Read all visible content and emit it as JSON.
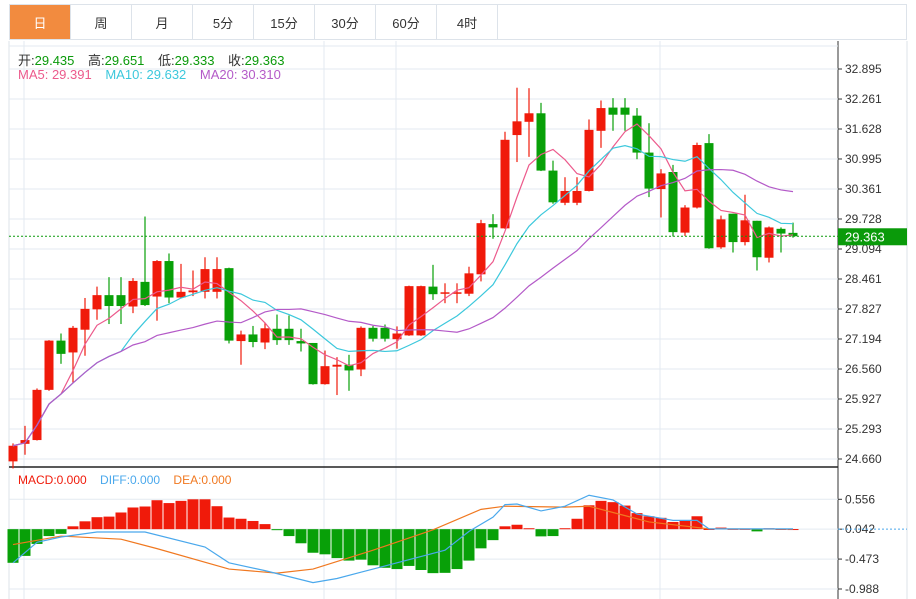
{
  "tabs": [
    "日",
    "周",
    "月",
    "5分",
    "15分",
    "30分",
    "60分",
    "4时"
  ],
  "active_tab": 0,
  "ohlc": {
    "open_label": "开:",
    "open": "29.435",
    "high_label": "高:",
    "high": "29.651",
    "low_label": "低:",
    "low": "29.333",
    "close_label": "收:",
    "close": "29.363"
  },
  "ma": {
    "ma5": "MA5: 29.391",
    "ma10": "MA10: 29.632",
    "ma20": "MA20: 30.310"
  },
  "macd_legend": {
    "macd": "MACD:0.000",
    "diff": "DIFF:0.000",
    "dea": "DEA:0.000"
  },
  "current_price": "29.363",
  "colors": {
    "up": "#f01a0a",
    "down": "#08a008",
    "ma5": "#ec5a8c",
    "ma10": "#3cc8dc",
    "ma20": "#b45ac8",
    "diff": "#4aa8ec",
    "dea": "#f07820",
    "accent": "#f28b3f"
  },
  "chart_data": {
    "type": "candlestick",
    "price_ticks": [
      "32.895",
      "32.261",
      "31.628",
      "30.995",
      "30.361",
      "29.728",
      "29.094",
      "28.461",
      "27.827",
      "27.194",
      "26.560",
      "25.927",
      "25.293",
      "24.660"
    ],
    "ylim": [
      24.66,
      32.895
    ],
    "candles": [
      [
        24.61,
        24.99,
        24.46,
        24.94
      ],
      [
        24.98,
        25.36,
        24.75,
        25.06
      ],
      [
        25.06,
        26.15,
        25.05,
        26.12
      ],
      [
        26.12,
        27.17,
        26.1,
        27.16
      ],
      [
        27.16,
        27.31,
        26.67,
        26.88
      ],
      [
        26.91,
        27.47,
        26.26,
        27.43
      ],
      [
        27.39,
        28.06,
        26.84,
        27.83
      ],
      [
        27.82,
        28.3,
        27.6,
        28.12
      ],
      [
        28.12,
        28.5,
        27.51,
        27.89
      ],
      [
        28.12,
        28.5,
        27.51,
        27.89
      ],
      [
        27.88,
        28.48,
        27.74,
        28.42
      ],
      [
        28.4,
        29.78,
        27.89,
        27.91
      ],
      [
        28.09,
        28.86,
        27.58,
        28.84
      ],
      [
        28.84,
        29.0,
        27.95,
        28.07
      ],
      [
        28.07,
        28.78,
        28.05,
        28.19
      ],
      [
        28.18,
        28.64,
        28.1,
        28.22
      ],
      [
        28.19,
        28.92,
        28.05,
        28.67
      ],
      [
        28.19,
        28.92,
        28.05,
        28.67
      ],
      [
        28.69,
        28.7,
        27.1,
        27.16
      ],
      [
        27.15,
        27.37,
        26.65,
        27.29
      ],
      [
        27.29,
        27.47,
        27.02,
        27.13
      ],
      [
        27.12,
        27.54,
        26.98,
        27.42
      ],
      [
        27.41,
        27.71,
        27.07,
        27.17
      ],
      [
        27.41,
        27.69,
        27.07,
        27.17
      ],
      [
        27.15,
        27.41,
        26.93,
        27.1
      ],
      [
        27.11,
        27.11,
        26.23,
        26.24
      ],
      [
        26.24,
        26.95,
        26.23,
        26.62
      ],
      [
        26.61,
        26.81,
        26.01,
        26.65
      ],
      [
        26.65,
        26.86,
        26.1,
        26.53
      ],
      [
        26.55,
        27.46,
        26.41,
        27.43
      ],
      [
        27.43,
        27.47,
        27.14,
        27.2
      ],
      [
        27.43,
        27.5,
        27.14,
        27.2
      ],
      [
        27.19,
        27.46,
        26.99,
        27.31
      ],
      [
        27.27,
        28.32,
        27.26,
        28.31
      ],
      [
        27.27,
        28.32,
        27.26,
        28.31
      ],
      [
        28.3,
        28.76,
        28.02,
        28.14
      ],
      [
        28.15,
        28.37,
        27.95,
        28.18
      ],
      [
        28.15,
        28.37,
        27.95,
        28.18
      ],
      [
        28.15,
        28.72,
        28.1,
        28.58
      ],
      [
        28.56,
        29.71,
        28.41,
        29.64
      ],
      [
        29.62,
        29.83,
        29.31,
        29.55
      ],
      [
        29.53,
        31.57,
        29.52,
        31.4
      ],
      [
        31.5,
        32.5,
        30.93,
        31.79
      ],
      [
        31.78,
        32.49,
        31.04,
        31.96
      ],
      [
        31.96,
        32.18,
        30.74,
        30.75
      ],
      [
        30.75,
        30.96,
        30.05,
        30.08
      ],
      [
        30.07,
        30.61,
        30.02,
        30.32
      ],
      [
        30.07,
        30.61,
        30.02,
        30.32
      ],
      [
        30.32,
        31.83,
        30.31,
        31.61
      ],
      [
        31.59,
        32.23,
        31.23,
        32.07
      ],
      [
        32.08,
        32.28,
        31.59,
        31.93
      ],
      [
        32.08,
        32.28,
        31.59,
        31.93
      ],
      [
        31.91,
        32.07,
        30.99,
        31.13
      ],
      [
        31.13,
        31.75,
        30.19,
        30.37
      ],
      [
        30.36,
        30.78,
        29.76,
        30.69
      ],
      [
        30.72,
        30.87,
        29.36,
        29.45
      ],
      [
        29.44,
        30.02,
        29.37,
        29.97
      ],
      [
        29.97,
        31.34,
        29.95,
        31.29
      ],
      [
        31.33,
        31.52,
        29.1,
        29.11
      ],
      [
        29.13,
        29.8,
        29.1,
        29.72
      ],
      [
        29.84,
        29.84,
        29.02,
        29.24
      ],
      [
        29.24,
        30.24,
        29.17,
        29.7
      ],
      [
        29.69,
        29.69,
        28.64,
        28.92
      ],
      [
        28.91,
        29.57,
        28.81,
        29.55
      ],
      [
        29.52,
        29.55,
        29.02,
        29.42
      ],
      [
        29.435,
        29.651,
        29.333,
        29.363
      ]
    ],
    "macd_ticks": [
      "0.556",
      "0.042",
      "-0.473",
      "-0.988"
    ],
    "macd_ylim": [
      -1.03,
      0.62
    ],
    "macd_baseline": 0.042,
    "macd_hist": [
      -0.579,
      -0.46,
      -0.254,
      -0.119,
      -0.081,
      0.049,
      0.135,
      0.206,
      0.216,
      0.287,
      0.373,
      0.39,
      0.498,
      0.449,
      0.487,
      0.514,
      0.514,
      0.395,
      0.2,
      0.179,
      0.141,
      0.087,
      -0.011,
      -0.119,
      -0.243,
      -0.406,
      -0.433,
      -0.498,
      -0.541,
      -0.525,
      -0.622,
      -0.665,
      -0.687,
      -0.633,
      -0.703,
      -0.757,
      -0.752,
      -0.687,
      -0.541,
      -0.33,
      -0.189,
      0.049,
      0.076,
      0.016,
      -0.124,
      -0.119,
      0.016,
      0.179,
      0.411,
      0.487,
      0.465,
      0.406,
      0.276,
      0.222,
      0.195,
      0.124,
      0.151,
      0.222,
      0.003,
      0.027,
      0.005,
      0.005,
      -0.038,
      0.016,
      0.003,
      0.002
    ],
    "diff": [
      [
        1,
        -0.537
      ],
      [
        3,
        -0.185
      ],
      [
        5,
        -0.093
      ],
      [
        8,
        -0.007
      ],
      [
        12,
        -0.007
      ],
      [
        17,
        -0.266
      ],
      [
        19,
        -0.537
      ],
      [
        22,
        -0.672
      ],
      [
        26,
        -0.878
      ],
      [
        28,
        -0.807
      ],
      [
        30,
        -0.699
      ],
      [
        33,
        -0.537
      ],
      [
        37,
        -0.32
      ],
      [
        39,
        0.004
      ],
      [
        41,
        0.248
      ],
      [
        42,
        0.464
      ],
      [
        43,
        0.475
      ],
      [
        45,
        0.356
      ],
      [
        47,
        0.437
      ],
      [
        49,
        0.626
      ],
      [
        51,
        0.545
      ],
      [
        53,
        0.302
      ],
      [
        56,
        0.193
      ],
      [
        58,
        0.193
      ],
      [
        59,
        0.047
      ],
      [
        66,
        0.047
      ]
    ],
    "dea": [
      [
        1,
        -0.223
      ],
      [
        5,
        -0.077
      ],
      [
        10,
        -0.131
      ],
      [
        13,
        -0.293
      ],
      [
        19,
        -0.645
      ],
      [
        23,
        -0.715
      ],
      [
        26,
        -0.645
      ],
      [
        31,
        -0.32
      ],
      [
        36,
        0.031
      ],
      [
        40,
        0.383
      ],
      [
        42,
        0.437
      ],
      [
        47,
        0.421
      ],
      [
        49,
        0.437
      ],
      [
        52,
        0.275
      ],
      [
        54,
        0.166
      ],
      [
        59,
        0.047
      ],
      [
        66,
        0.042
      ]
    ]
  }
}
